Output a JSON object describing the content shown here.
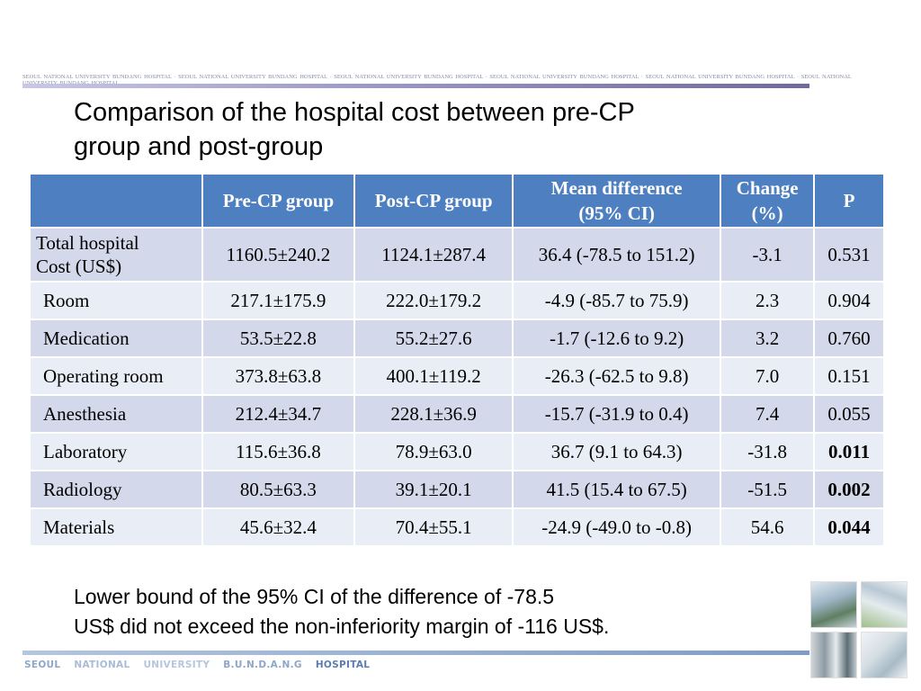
{
  "header": {
    "band_text": "SEOUL NATIONAL UNIVERSITY BUNDANG HOSPITAL · SEOUL NATIONAL UNIVERSITY BUNDANG HOSPITAL · SEOUL NATIONAL UNIVERSITY BUNDANG HOSPITAL · SEOUL NATIONAL UNIVERSITY BUNDANG HOSPITAL · SEOUL NATIONAL UNIVERSITY BUNDANG HOSPITAL · SEOUL NATIONAL UNIVERSITY BUNDANG HOSPITAL"
  },
  "slide": {
    "title_line1": "Comparison of the hospital cost between pre-CP",
    "title_line2": "group and post-group"
  },
  "table": {
    "headers": {
      "blank": "",
      "pre": "Pre-CP group",
      "post": "Post-CP group",
      "mean_diff_1": "Mean difference",
      "mean_diff_2": "(95% CI)",
      "change_1": "Change",
      "change_2": "(%)",
      "p": "P"
    },
    "rows": [
      {
        "label_1": "Total hospital",
        "label_2": "Cost (US$)",
        "pre": "1160.5±240.2",
        "post": "1124.1±287.4",
        "diff": "36.4 (-78.5 to 151.2)",
        "change": "-3.1",
        "p": "0.531"
      },
      {
        "label": "Room",
        "pre": "217.1±175.9",
        "post": "222.0±179.2",
        "diff": "-4.9 (-85.7 to 75.9)",
        "change": "2.3",
        "p": "0.904"
      },
      {
        "label": "Medication",
        "pre": "53.5±22.8",
        "post": "55.2±27.6",
        "diff": "-1.7 (-12.6 to 9.2)",
        "change": "3.2",
        "p": "0.760"
      },
      {
        "label": "Operating room",
        "pre": "373.8±63.8",
        "post": "400.1±119.2",
        "diff": "-26.3 (-62.5 to 9.8)",
        "change": "7.0",
        "p": "0.151"
      },
      {
        "label": "Anesthesia",
        "pre": "212.4±34.7",
        "post": "228.1±36.9",
        "diff": "-15.7 (-31.9 to 0.4)",
        "change": "7.4",
        "p": "0.055"
      },
      {
        "label": "Laboratory",
        "pre": "115.6±36.8",
        "post": "78.9±63.0",
        "diff": "36.7 (9.1 to 64.3)",
        "change": "-31.8",
        "p": "0.011"
      },
      {
        "label": "Radiology",
        "pre": "80.5±63.3",
        "post": "39.1±20.1",
        "diff": "41.5 (15.4 to 67.5)",
        "change": "-51.5",
        "p": "0.002"
      },
      {
        "label": "Materials",
        "pre": "45.6±32.4",
        "post": "70.4±55.1",
        "diff": "-24.9 (-49.0 to -0.8)",
        "change": "54.6",
        "p": "0.044"
      }
    ]
  },
  "note": {
    "line1": "Lower bound of the 95% CI of the difference of -78.5",
    "line2": "US$ did not exceed the non-inferiority margin of -116 US$."
  },
  "footer": {
    "w1": "SEOUL",
    "w2": "NATIONAL",
    "w3": "UNIVERSITY",
    "w4": "B.U.N.D.A.N.G",
    "w5": "HOSPITAL"
  },
  "colors": {
    "header_fill": "#4e80c1",
    "row_dark": "#d3d9ea",
    "row_light": "#e9edf5"
  },
  "icons": {
    "photos": [
      "hospital-building-photo-icon",
      "hospital-campus-photo-icon",
      "hospital-interior-photo-icon",
      "hospital-atrium-photo-icon"
    ]
  }
}
